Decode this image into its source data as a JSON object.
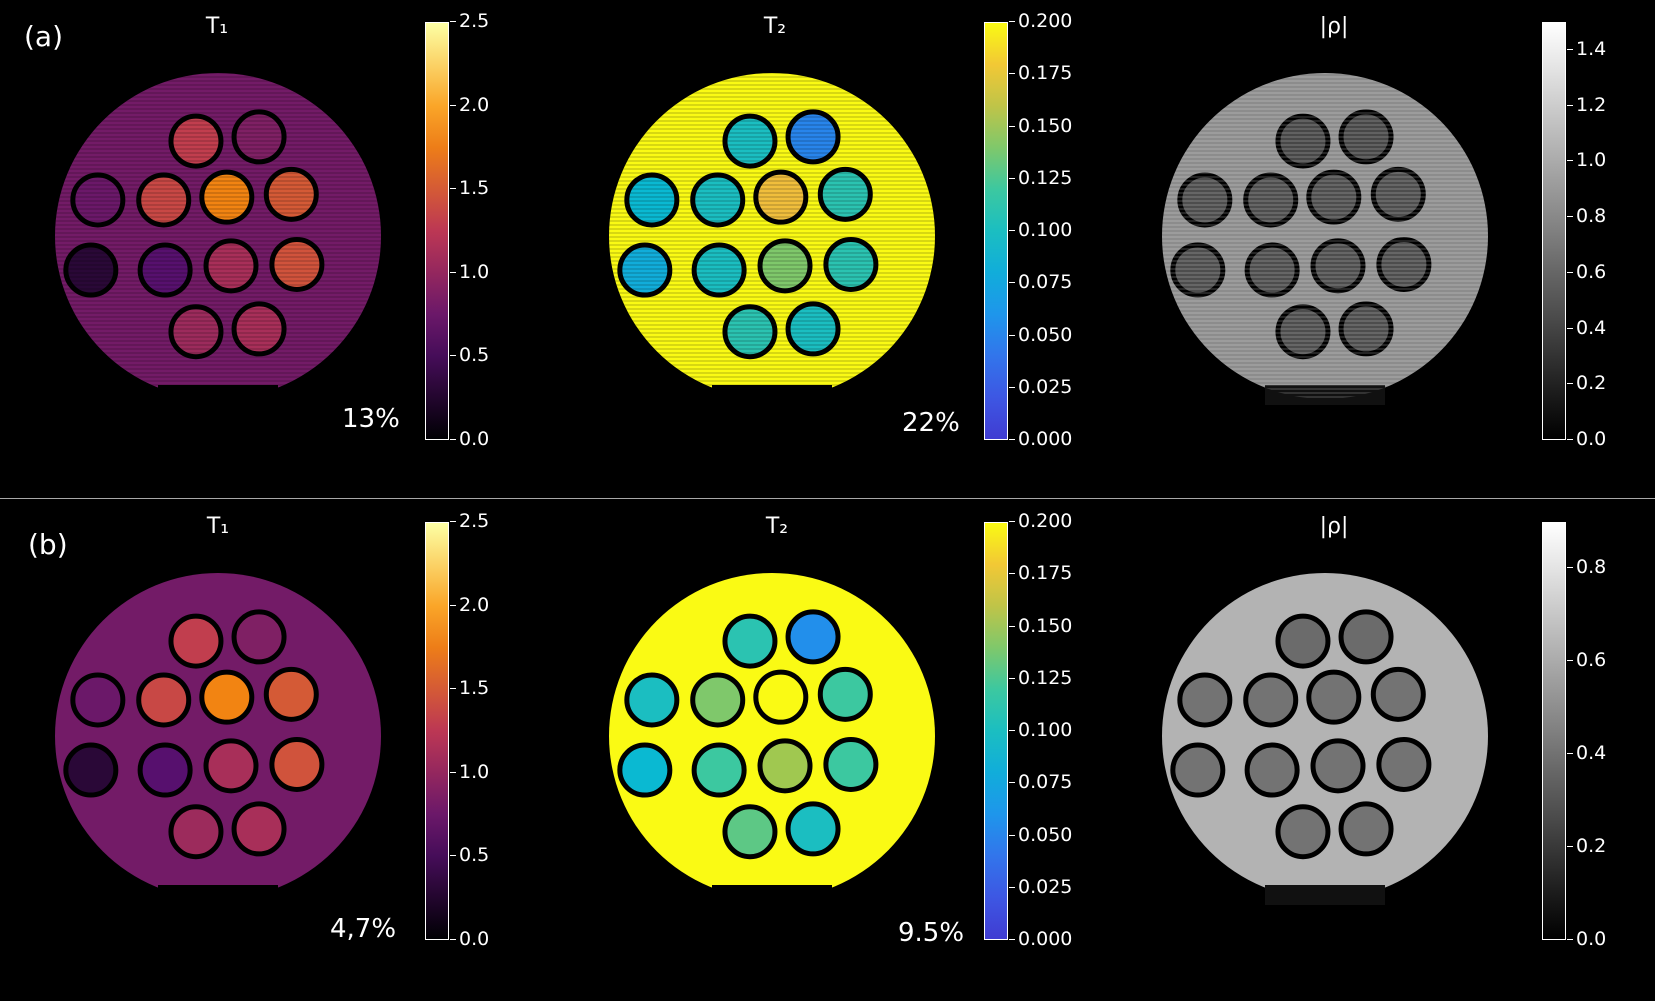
{
  "figure": {
    "rows": [
      {
        "panel_label": "(a)",
        "maps": [
          {
            "title": "T₁",
            "error": "13%",
            "colormap": "inferno",
            "ticks": [
              "2.5",
              "2.0",
              "1.5",
              "1.0",
              "0.5",
              "0.0"
            ],
            "bg_level": 0.32,
            "vials": [
              0.52,
              0.35,
              0.3,
              0.55,
              0.72,
              0.6,
              0.12,
              0.25,
              0.45,
              0.58,
              0.42,
              0.45
            ],
            "noisy": true
          },
          {
            "title": "T₂",
            "error": "22%",
            "colormap": "plasma",
            "ticks": [
              "0.200",
              "0.175",
              "0.150",
              "0.125",
              "0.100",
              "0.075",
              "0.050",
              "0.025",
              "0.000"
            ],
            "bg_level": 1.0,
            "vials": [
              0.5,
              0.25,
              0.45,
              0.5,
              0.88,
              0.55,
              0.4,
              0.5,
              0.7,
              0.55,
              0.55,
              0.5
            ],
            "noisy": true
          },
          {
            "title": "|ρ|",
            "error": "",
            "colormap": "gray",
            "ticks": [
              "1.4",
              "1.2",
              "1.0",
              "0.8",
              "0.6",
              "0.4",
              "0.2",
              "0.0"
            ],
            "tick_max": 1.5,
            "tick_values": [
              1.4,
              1.2,
              1.0,
              0.8,
              0.6,
              0.4,
              0.2,
              0.0
            ],
            "bg_level": 0.55,
            "vials": [
              0.28,
              0.28,
              0.3,
              0.3,
              0.3,
              0.3,
              0.3,
              0.3,
              0.3,
              0.3,
              0.3,
              0.3
            ],
            "noisy": true
          }
        ]
      },
      {
        "panel_label": "(b)",
        "maps": [
          {
            "title": "T₁",
            "error": "4,7%",
            "colormap": "inferno",
            "ticks": [
              "2.5",
              "2.0",
              "1.5",
              "1.0",
              "0.5",
              "0.0"
            ],
            "bg_level": 0.32,
            "vials": [
              0.52,
              0.35,
              0.3,
              0.55,
              0.72,
              0.6,
              0.12,
              0.25,
              0.45,
              0.58,
              0.42,
              0.45
            ],
            "noisy": false
          },
          {
            "title": "T₂",
            "error": "9.5%",
            "colormap": "plasma",
            "ticks": [
              "0.200",
              "0.175",
              "0.150",
              "0.125",
              "0.100",
              "0.075",
              "0.050",
              "0.025",
              "0.000"
            ],
            "bg_level": 1.0,
            "vials": [
              0.55,
              0.28,
              0.5,
              0.7,
              1.0,
              0.6,
              0.45,
              0.6,
              0.75,
              0.6,
              0.65,
              0.5
            ],
            "noisy": false
          },
          {
            "title": "|ρ|",
            "error": "",
            "colormap": "gray",
            "ticks": [
              "0.8",
              "0.6",
              "0.4",
              "0.2",
              "0.0"
            ],
            "tick_max": 0.9,
            "tick_values": [
              0.8,
              0.6,
              0.4,
              0.2,
              0.0
            ],
            "bg_level": 0.7,
            "vials": [
              0.42,
              0.42,
              0.45,
              0.45,
              0.45,
              0.45,
              0.45,
              0.45,
              0.45,
              0.45,
              0.45,
              0.45
            ],
            "noisy": false
          }
        ]
      }
    ]
  }
}
